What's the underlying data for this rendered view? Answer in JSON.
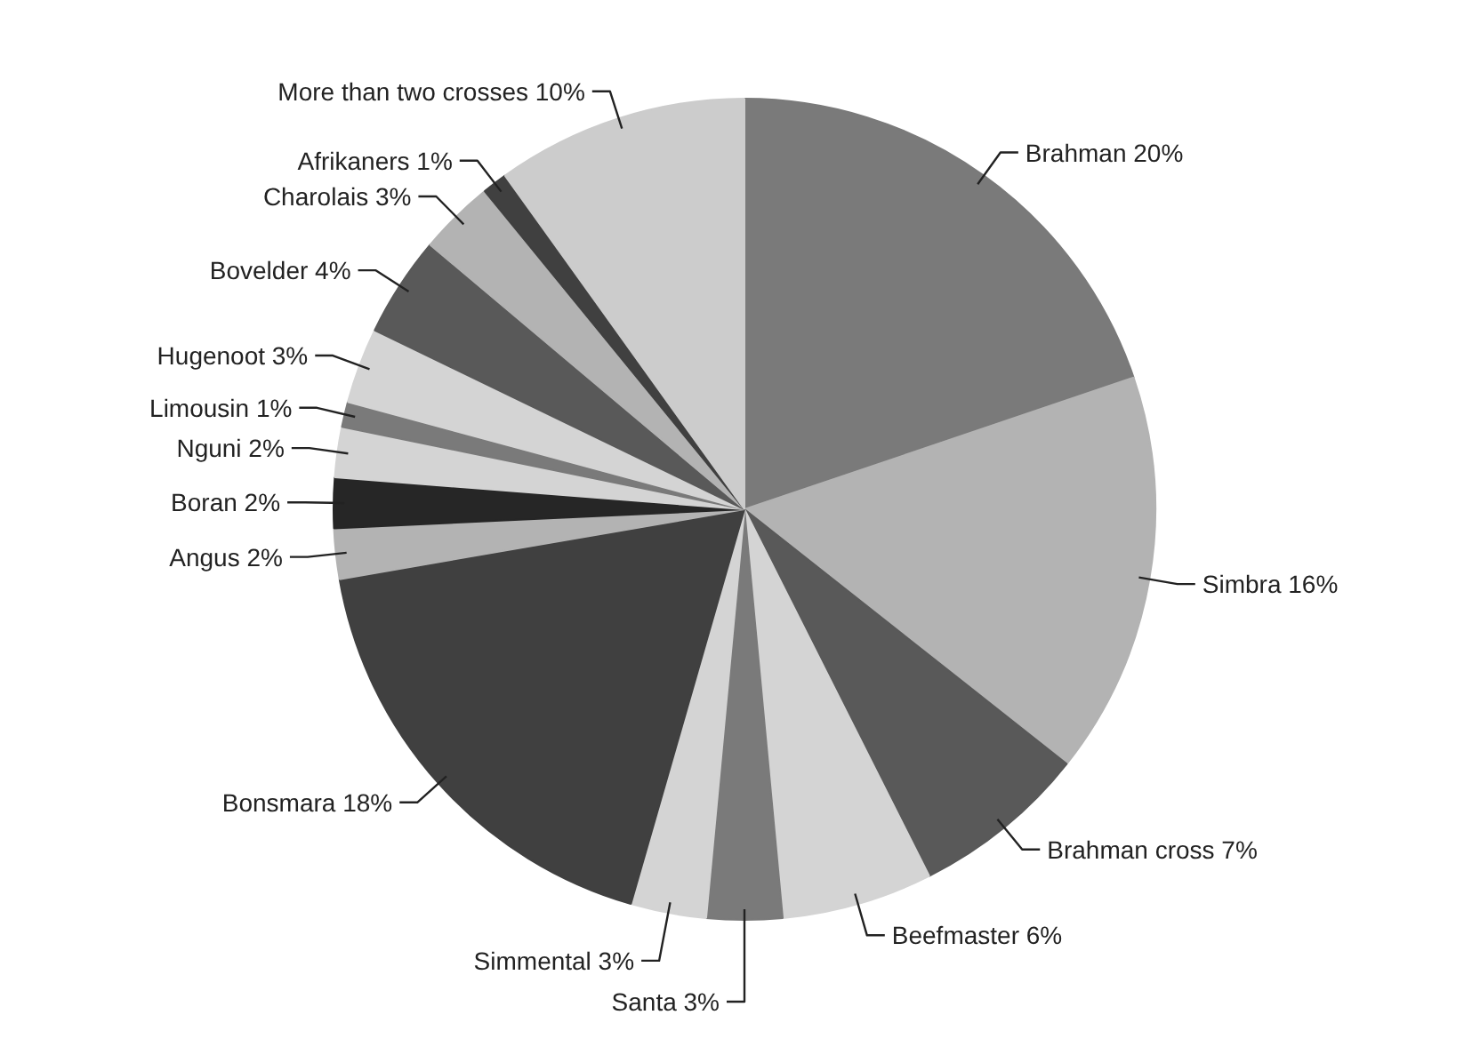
{
  "chart_data": {
    "type": "pie",
    "categories": [
      "Brahman",
      "Simbra",
      "Brahman cross",
      "Beefmaster",
      "Santa",
      "Simmental",
      "Bonsmara",
      "Angus",
      "Boran",
      "Nguni",
      "Limousin",
      "Hugenoot",
      "Bovelder",
      "Charolais",
      "Afrikaners",
      "More than two crosses"
    ],
    "values": [
      20,
      16,
      7,
      6,
      3,
      3,
      18,
      2,
      2,
      2,
      1,
      3,
      4,
      3,
      1,
      10
    ],
    "value_labels": [
      "20%",
      "16%",
      "7%",
      "6%",
      "3%",
      "3%",
      "18%",
      "2%",
      "2%",
      "2%",
      "1%",
      "3%",
      "4%",
      "3%",
      "1%",
      "10%"
    ],
    "colors": [
      "#7a7a7a",
      "#b3b3b3",
      "#595959",
      "#d4d4d4",
      "#7a7a7a",
      "#d4d4d4",
      "#404040",
      "#b3b3b3",
      "#262626",
      "#d4d4d4",
      "#7a7a7a",
      "#d4d4d4",
      "#595959",
      "#b3b3b3",
      "#404040",
      "#cccccc"
    ]
  }
}
